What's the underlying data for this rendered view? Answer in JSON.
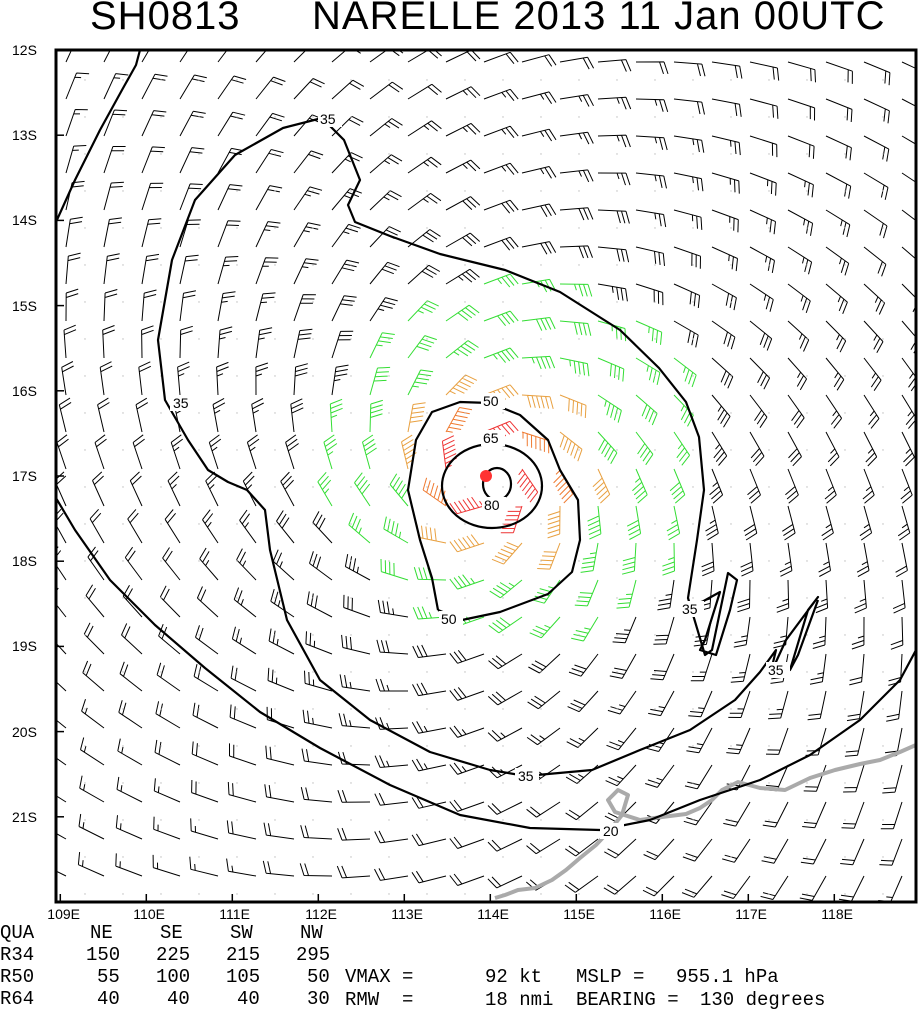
{
  "title": {
    "storm_id": "SH0813",
    "storm_label": "NARELLE 2013 11 Jan 00UTC"
  },
  "chart_data": {
    "type": "wind-barb-map",
    "lon_range": [
      108.95,
      118.95
    ],
    "lat_range": [
      -12,
      -22
    ],
    "lon_ticks": [
      "109E",
      "110E",
      "111E",
      "112E",
      "113E",
      "114E",
      "115E",
      "116E",
      "117E",
      "118E"
    ],
    "lat_ticks": [
      "12S",
      "13S",
      "14S",
      "15S",
      "16S",
      "17S",
      "18S",
      "19S",
      "20S",
      "21S"
    ],
    "center": {
      "lon": 113.9,
      "lat": -17.0
    },
    "contour_labels": [
      "35",
      "35",
      "35",
      "35",
      "50",
      "50",
      "65",
      "80",
      "20"
    ],
    "wind_colors": {
      "below_34kt": "#000000",
      "34_to_50kt": "#33dd33",
      "50_to_64kt": "#e8a040",
      "64_to_80kt": "#ef7a30",
      "above_80kt": "#ee3333",
      "center_marker": "#ff3333",
      "coastline": "#aaaaaa"
    }
  },
  "quadrant_table": {
    "header": [
      "QUA",
      "NE",
      "SE",
      "SW",
      "NW"
    ],
    "rows": [
      [
        "R34",
        "150",
        "225",
        "215",
        "295"
      ],
      [
        "R50",
        "55",
        "100",
        "105",
        "50"
      ],
      [
        "R64",
        "40",
        "40",
        "40",
        "30"
      ]
    ]
  },
  "stats": {
    "vmax_label": "VMAX =",
    "vmax_value": "92 kt",
    "mslp_label": "MSLP =",
    "mslp_value": "955.1 hPa",
    "rmw_label": "RMW  =",
    "rmw_value": "18 nmi",
    "bearing_label": "BEARING =",
    "bearing_value": "130 degrees"
  }
}
